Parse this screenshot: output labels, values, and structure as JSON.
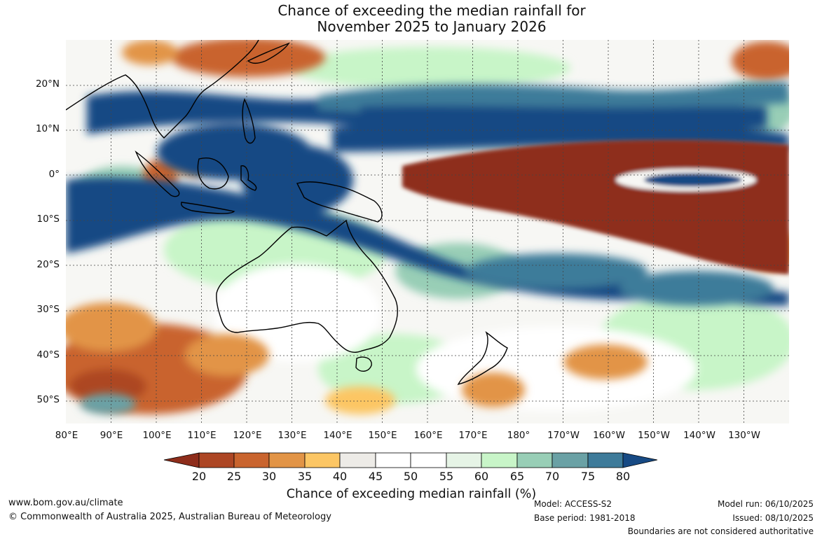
{
  "title": {
    "line1": "Chance of exceeding the median rainfall for",
    "line2": "November 2025 to January 2026"
  },
  "map": {
    "lat_labels": [
      "20°N",
      "10°N",
      "0°",
      "10°S",
      "20°S",
      "30°S",
      "40°S",
      "50°S"
    ],
    "lon_labels": [
      "80°E",
      "90°E",
      "100°E",
      "110°E",
      "120°E",
      "130°E",
      "140°E",
      "150°E",
      "160°E",
      "170°E",
      "180°",
      "170°W",
      "160°W",
      "150°W",
      "140°W",
      "130°W"
    ],
    "latitude_range": [
      -55,
      30
    ],
    "longitude_range": [
      80,
      240
    ]
  },
  "colorbar": {
    "ticks": [
      "20",
      "25",
      "30",
      "35",
      "40",
      "45",
      "50",
      "55",
      "60",
      "65",
      "70",
      "75",
      "80"
    ],
    "colors": [
      "#8e2d1b",
      "#ad4624",
      "#c9642e",
      "#e29446",
      "#fcc664",
      "#edebe7",
      "#ffffff",
      "#ffffff",
      "#e6f4e6",
      "#c8f5c8",
      "#98ceb6",
      "#6aa1a5",
      "#3e7b9a",
      "#174a84"
    ],
    "label": "Chance of exceeding median rainfall (%)"
  },
  "footer": {
    "website": "www.bom.gov.au/climate",
    "copyright": "© Commonwealth of Australia 2025, Australian Bureau of Meteorology",
    "model": "Model: ACCESS-S2",
    "base_period": "Base period: 1981-2018",
    "model_run": "Model run: 06/10/2025",
    "issued": "Issued: 08/10/2025",
    "disclaimer": "Boundaries are not considered authoritative"
  }
}
